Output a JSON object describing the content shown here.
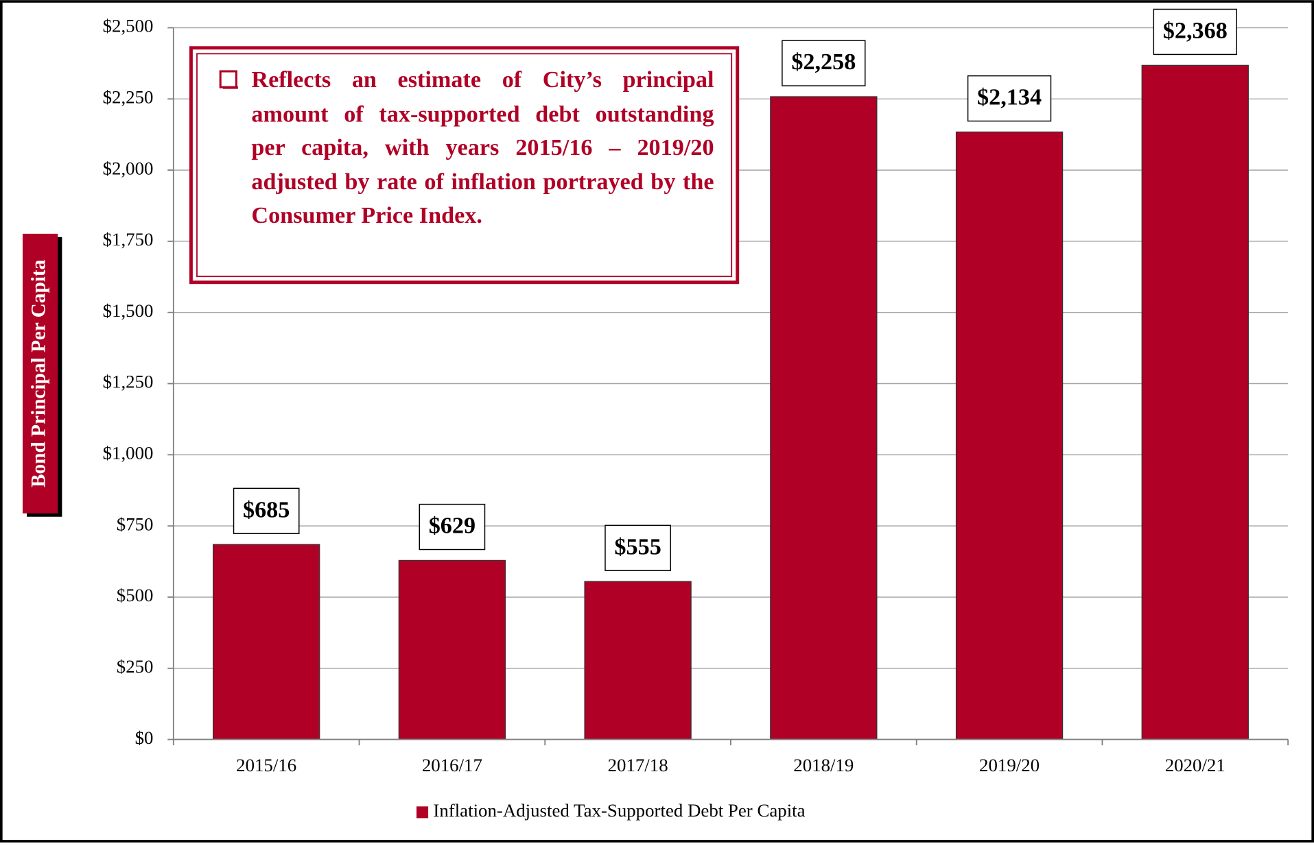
{
  "chart_data": {
    "type": "bar",
    "annotation": "Reflects an estimate of City’s principal amount of tax-supported debt outstanding per capita, with years 2015/16 – 2019/20 adjusted by rate of inflation portrayed by the Consumer Price Index.",
    "ylabel": "Bond Principal Per Capita",
    "categories": [
      "2015/16",
      "2016/17",
      "2017/18",
      "2018/19",
      "2019/20",
      "2020/21"
    ],
    "series": [
      {
        "name": "Inflation-Adjusted Tax-Supported Debt Per Capita",
        "color": "#b00026",
        "values": [
          685,
          629,
          555,
          2258,
          2134,
          2368
        ],
        "value_labels": [
          "$685",
          "$629",
          "$555",
          "$2,258",
          "$2,134",
          "$2,368"
        ]
      }
    ],
    "ylim": [
      0,
      2500
    ],
    "yticks": [
      {
        "value": 0,
        "label": "$0"
      },
      {
        "value": 250,
        "label": "$250"
      },
      {
        "value": 500,
        "label": "$500"
      },
      {
        "value": 750,
        "label": "$750"
      },
      {
        "value": 1000,
        "label": "$1,000"
      },
      {
        "value": 1250,
        "label": "$1,250"
      },
      {
        "value": 1500,
        "label": "$1,500"
      },
      {
        "value": 1750,
        "label": "$1,750"
      },
      {
        "value": 2000,
        "label": "$2,000"
      },
      {
        "value": 2250,
        "label": "$2,250"
      },
      {
        "value": 2500,
        "label": "$2,500"
      }
    ],
    "grid": true
  }
}
